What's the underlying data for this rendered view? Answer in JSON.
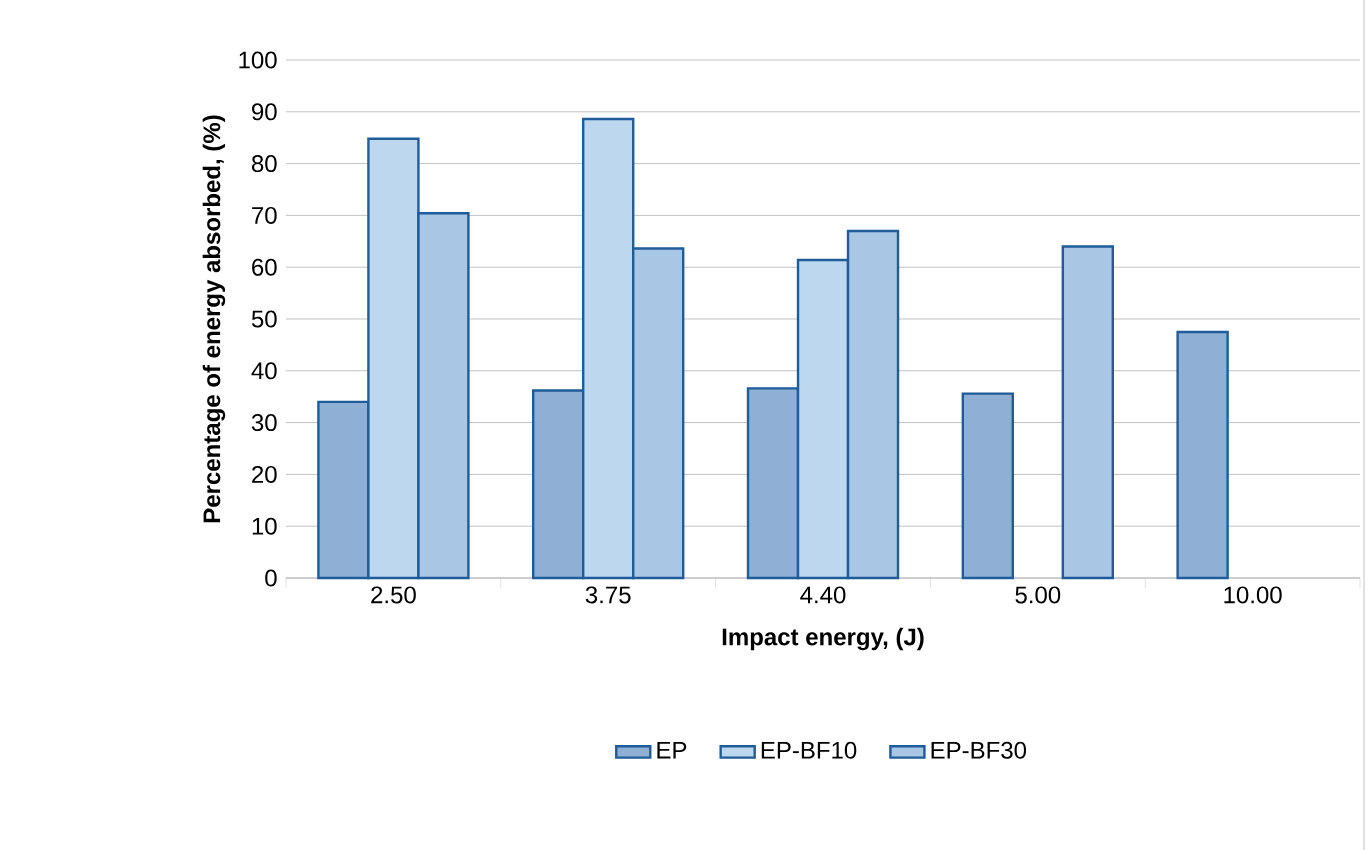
{
  "chart_data": {
    "type": "bar",
    "xlabel": "Impact energy, (J)",
    "ylabel": "Percentage of energy absorbed, (%)",
    "categories": [
      "2.50",
      "3.75",
      "4.40",
      "5.00",
      "10.00"
    ],
    "series": [
      {
        "name": "EP",
        "color": "#8fb0d4",
        "values": [
          34.0,
          36.2,
          36.6,
          35.6,
          47.5
        ]
      },
      {
        "name": "EP-BF10",
        "color": "#bdd7ee",
        "values": [
          84.8,
          88.6,
          61.4,
          null,
          null
        ]
      },
      {
        "name": "EP-BF30",
        "color": "#a9c6e4",
        "values": [
          70.4,
          63.6,
          67.0,
          64.0,
          null
        ]
      }
    ],
    "ylim": [
      0,
      100
    ],
    "yticks": [
      0,
      10,
      20,
      30,
      40,
      50,
      60,
      70,
      80,
      90,
      100
    ],
    "grid": "y",
    "legend": "bottom"
  }
}
